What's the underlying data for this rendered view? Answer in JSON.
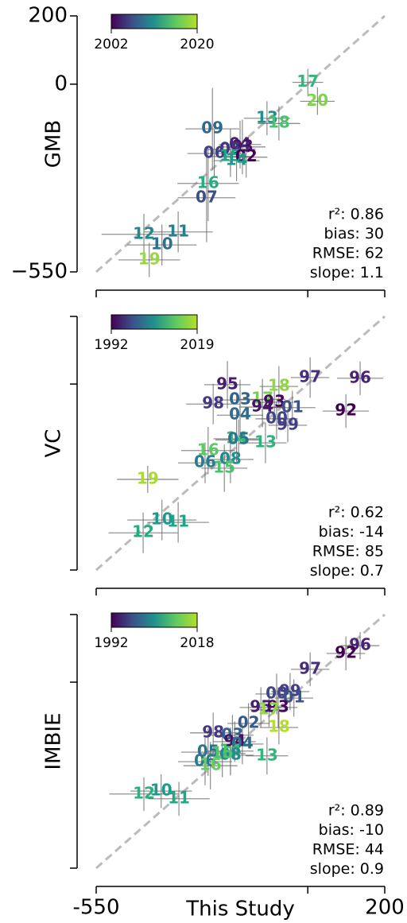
{
  "chart_data": [
    {
      "type": "scatter",
      "ylabel": "GMB",
      "xlim": [
        -550,
        200
      ],
      "ylim": [
        -550,
        200
      ],
      "xticks": [],
      "xticks_minor": [
        -550,
        0,
        200
      ],
      "yticks": [
        {
          "value": -550,
          "label": "−550"
        },
        0,
        200
      ],
      "yticks_minor": [],
      "colorbar": {
        "ticks": [
          2002,
          2020
        ],
        "colors": [
          "#440154",
          "#3b528b",
          "#21918c",
          "#5ec962",
          "#b5de2b"
        ]
      },
      "stats": [
        "r²: 0.86",
        "bias: 30",
        "RMSE: 62",
        "slope: 1.1"
      ],
      "labels": [
        "17",
        "20",
        "13",
        "18",
        "09",
        "04",
        "03",
        "05",
        "06",
        "15",
        "02",
        "14",
        "16",
        "07",
        "12",
        "11",
        "10",
        "19"
      ],
      "x": [
        0,
        25,
        -106,
        -75,
        -248,
        -176,
        -170,
        -201,
        -243,
        -201,
        -160,
        -185,
        -259,
        -263,
        -426,
        -337,
        -379,
        -412
      ],
      "y": [
        5,
        -50,
        -100,
        -115,
        -131,
        -177,
        -184,
        -191,
        -203,
        -212,
        -214,
        -224,
        -291,
        -333,
        -440,
        -433,
        -471,
        -515
      ],
      "xerr": [
        40,
        45,
        60,
        55,
        70,
        55,
        60,
        65,
        70,
        60,
        55,
        60,
        80,
        75,
        110,
        90,
        90,
        80
      ],
      "yerr": [
        40,
        40,
        50,
        50,
        120,
        70,
        80,
        60,
        70,
        60,
        60,
        60,
        110,
        130,
        60,
        60,
        60,
        50
      ],
      "colors": [
        "#35b779",
        "#7fd34e",
        "#21918c",
        "#4ac16d",
        "#31688e",
        "#482374",
        "#471365",
        "#46327e",
        "#424086",
        "#20a486",
        "#440154",
        "#1f9a8a",
        "#27ad81",
        "#3c4f8a",
        "#24878e",
        "#287d8e",
        "#2c728e",
        "#9bd54a"
      ]
    },
    {
      "type": "scatter",
      "ylabel": "VC",
      "xlim": [
        -550,
        200
      ],
      "ylim": [
        -550,
        200
      ],
      "xticks": [],
      "xticks_minor": [
        -550,
        0,
        200
      ],
      "yticks": [],
      "yticks_minor": [
        -550,
        0,
        200
      ],
      "colorbar": {
        "ticks": [
          1992,
          2019
        ],
        "colors": [
          "#440154",
          "#3b528b",
          "#21918c",
          "#5ec962",
          "#b5de2b"
        ]
      },
      "stats": [
        "r²: 0.62",
        "bias: -14",
        "RMSE: 85",
        "slope: 0.7"
      ],
      "labels": [
        "96",
        "97",
        "92",
        "95",
        "18",
        "98",
        "03",
        "17",
        "93",
        "94",
        "01",
        "04",
        "00",
        "99",
        "14",
        "05",
        "13",
        "16",
        "08",
        "06",
        "15",
        "19",
        "10",
        "11",
        "12"
      ],
      "x": [
        136,
        6,
        99,
        -209,
        -75,
        -246,
        -176,
        -118,
        -87,
        -118,
        -40,
        -176,
        -81,
        -52,
        -185,
        -180,
        -110,
        -259,
        -201,
        -267,
        -217,
        -416,
        -379,
        -337,
        -428
      ],
      "y": [
        17,
        19,
        -80,
        -2,
        -7,
        -59,
        -47,
        -45,
        -54,
        -68,
        -70,
        -92,
        -103,
        -122,
        -162,
        -165,
        -174,
        -197,
        -223,
        -233,
        -249,
        -282,
        -402,
        -409,
        -440
      ],
      "xerr": [
        60,
        50,
        60,
        60,
        50,
        70,
        60,
        60,
        50,
        60,
        60,
        60,
        55,
        50,
        60,
        60,
        55,
        70,
        60,
        70,
        60,
        80,
        90,
        80,
        90
      ],
      "yerr": [
        50,
        60,
        50,
        70,
        60,
        60,
        60,
        60,
        60,
        60,
        50,
        60,
        60,
        50,
        70,
        60,
        60,
        70,
        70,
        60,
        70,
        40,
        60,
        60,
        60
      ],
      "colors": [
        "#482475",
        "#472d7b",
        "#440154",
        "#481c6e",
        "#8fd744",
        "#453781",
        "#33638d",
        "#75d054",
        "#46085c",
        "#471365",
        "#3b528b",
        "#2f6c8e",
        "#404688",
        "#433e85",
        "#3bbb75",
        "#2c738e",
        "#2eb37c",
        "#5ec962",
        "#238a8d",
        "#297b8e",
        "#4cc26c",
        "#a8db34",
        "#1f998a",
        "#20a386",
        "#25ab82"
      ]
    },
    {
      "type": "scatter",
      "ylabel": "IMBIE",
      "xlabel": "This Study",
      "xlim": [
        -550,
        200
      ],
      "ylim": [
        -550,
        200
      ],
      "xticks": [
        -550,
        200
      ],
      "xticks_minor": [
        0
      ],
      "yticks": [],
      "yticks_minor": [
        -550,
        0,
        200
      ],
      "colorbar": {
        "ticks": [
          1992,
          2018
        ],
        "colors": [
          "#440154",
          "#3b528b",
          "#21918c",
          "#5ec962",
          "#b5de2b"
        ]
      },
      "stats": [
        "r²: 0.89",
        "bias: -10",
        "RMSE: 44",
        "slope: 0.9"
      ],
      "labels": [
        "96",
        "92",
        "97",
        "00",
        "99",
        "01",
        "95",
        "93",
        "17",
        "18",
        "02",
        "98",
        "03",
        "94",
        "04",
        "13",
        "14",
        "08",
        "05",
        "15",
        "06",
        "16",
        "12",
        "10",
        "11"
      ],
      "x": [
        136,
        99,
        6,
        -81,
        -46,
        -36,
        -122,
        -77,
        -101,
        -75,
        -154,
        -246,
        -196,
        -190,
        -170,
        -106,
        -201,
        -201,
        -259,
        -222,
        -267,
        -253,
        -426,
        -381,
        -335
      ],
      "y": [
        108,
        85,
        38,
        -35,
        -28,
        -47,
        -75,
        -75,
        -82,
        -134,
        -122,
        -150,
        -157,
        -176,
        -183,
        -218,
        -204,
        -216,
        -207,
        -211,
        -235,
        -247,
        -331,
        -322,
        -345
      ],
      "xerr": [
        50,
        50,
        50,
        55,
        50,
        50,
        55,
        50,
        50,
        50,
        55,
        60,
        55,
        55,
        55,
        55,
        60,
        60,
        70,
        60,
        70,
        70,
        90,
        80,
        80
      ],
      "yerr": [
        40,
        50,
        50,
        60,
        55,
        55,
        60,
        60,
        50,
        50,
        60,
        60,
        60,
        60,
        60,
        55,
        70,
        60,
        70,
        70,
        70,
        70,
        50,
        50,
        50
      ],
      "colors": [
        "#482475",
        "#440154",
        "#472d7b",
        "#404688",
        "#433e85",
        "#3b528b",
        "#481c6e",
        "#46085c",
        "#8fd744",
        "#b5de2b",
        "#375a8c",
        "#453781",
        "#33638d",
        "#471365",
        "#2f6c8e",
        "#33b67a",
        "#3fbc73",
        "#238a8d",
        "#2c738e",
        "#52c569",
        "#297b8e",
        "#65cb5e",
        "#2bb07f",
        "#1f9a8a",
        "#22a884"
      ]
    }
  ]
}
